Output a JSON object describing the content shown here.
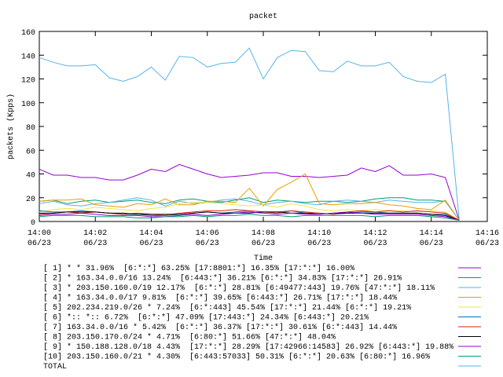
{
  "chart_data": {
    "type": "line",
    "title": "packet",
    "x_label": "Time",
    "y_label": "packets (Kpps)",
    "xlim": [
      0,
      16
    ],
    "ylim": [
      0,
      160
    ],
    "xticks": [
      {
        "value": 0,
        "label": "14:00 06/23"
      },
      {
        "value": 2,
        "label": "14:02 06/23"
      },
      {
        "value": 4,
        "label": "14:04 06/23"
      },
      {
        "value": 6,
        "label": "14:06 06/23"
      },
      {
        "value": 8,
        "label": "14:08 06/23"
      },
      {
        "value": 10,
        "label": "14:10 06/23"
      },
      {
        "value": 12,
        "label": "14:12 06/23"
      },
      {
        "value": 14,
        "label": "14:14 06/23"
      },
      {
        "value": 16,
        "label": "14:16 06/23"
      }
    ],
    "yticks": [
      0,
      20,
      40,
      60,
      80,
      100,
      120,
      140,
      160
    ],
    "grid": false,
    "x": [
      0,
      0.5,
      1,
      1.5,
      2,
      2.5,
      3,
      3.5,
      4,
      4.5,
      5,
      5.5,
      6,
      6.5,
      7,
      7.5,
      8,
      8.5,
      9,
      9.5,
      10,
      10.5,
      11,
      11.5,
      12,
      12.5,
      13,
      13.5,
      14,
      14.5,
      15
    ],
    "series": [
      {
        "name": "[ 1] * * 31.96%  [6:*:*] 63.25% [17:8801:*] 16.35% [17:*:*] 16.00%",
        "color": "#9400d3",
        "values": [
          44,
          39,
          39,
          37,
          37,
          35,
          35,
          39,
          44,
          42,
          48,
          44,
          40,
          37,
          38,
          39,
          41,
          41,
          38,
          38,
          37,
          38,
          39,
          45,
          42,
          47,
          39,
          39,
          40,
          37,
          1
        ]
      },
      {
        "name": "[ 2] * 163.34.0.0/16 13.24%  [6:443:*] 36.21% [6:*:*] 34.83% [17:*:*] 26.91%",
        "color": "#009e73",
        "values": [
          17,
          18,
          15,
          17,
          18,
          16,
          17,
          18,
          16,
          15,
          18,
          19,
          17,
          16,
          18,
          20,
          16,
          18,
          17,
          16,
          17,
          17,
          16,
          17,
          19,
          20,
          20,
          18,
          18,
          17,
          1
        ]
      },
      {
        "name": "[ 3] * 203.150.160.0/19 12.17%  [6:*:*] 28.81% [6:49477:443] 19.76% [47:*:*] 18.11%",
        "color": "#56b4e9",
        "values": [
          15,
          17,
          14,
          13,
          15,
          16,
          18,
          20,
          18,
          13,
          17,
          15,
          16,
          18,
          19,
          17,
          14,
          16,
          17,
          15,
          14,
          17,
          18,
          17,
          16,
          18,
          17,
          16,
          16,
          17,
          1
        ]
      },
      {
        "name": "[ 4] * 163.34.0.0/17 9.81%  [6:*:*] 39.65% [6:443:*] 26.71% [17:*:*] 18.44%",
        "color": "#e69f00",
        "values": [
          17,
          18,
          18,
          19,
          14,
          13,
          12,
          15,
          14,
          19,
          14,
          14,
          17,
          17,
          16,
          28,
          13,
          27,
          33,
          40,
          15,
          14,
          15,
          15,
          16,
          14,
          13,
          11,
          10,
          18,
          1
        ]
      },
      {
        "name": "[ 5] 202.234.219.0/26 * 7.24%  [6:*:443] 45.54% [17:*:*] 21.44% [6:*:*] 19.21%",
        "color": "#f0e442",
        "values": [
          8,
          10,
          11,
          10,
          12,
          11,
          10,
          9,
          11,
          12,
          15,
          16,
          16,
          15,
          14,
          13,
          14,
          12,
          15,
          13,
          10,
          9,
          10,
          9,
          10,
          9,
          9,
          8,
          9,
          8,
          1
        ]
      },
      {
        "name": "[ 6] *:: *:: 6.72%  [6:*:*] 47.09% [17:443:*] 24.34% [6:443:*] 20.21%",
        "color": "#0072b2",
        "values": [
          9,
          8,
          8,
          9,
          8,
          7,
          6,
          6,
          5,
          5,
          6,
          7,
          8,
          7,
          8,
          9,
          8,
          8,
          9,
          7,
          7,
          6,
          7,
          8,
          8,
          7,
          7,
          7,
          6,
          6,
          1
        ]
      },
      {
        "name": "[ 7] 163.34.0.0/16 * 5.42%  [6:*:*] 36.37% [17:*:*] 30.61% [6:*:443] 14.44%",
        "color": "#e51e10",
        "values": [
          6,
          7,
          8,
          7,
          8,
          7,
          6,
          7,
          6,
          5,
          7,
          8,
          9,
          9,
          10,
          9,
          8,
          7,
          9,
          8,
          7,
          6,
          8,
          9,
          8,
          9,
          8,
          9,
          8,
          7,
          1
        ]
      },
      {
        "name": "[ 8] 203.150.170.0/24 * 4.71%  [6:80:*] 51.66% [47:*:*] 48.04%",
        "color": "#000000",
        "values": [
          7,
          7,
          8,
          8,
          8,
          7,
          7,
          6,
          6,
          6,
          6,
          7,
          8,
          7,
          7,
          7,
          8,
          8,
          7,
          7,
          6,
          7,
          7,
          7,
          7,
          7,
          7,
          7,
          6,
          5,
          1
        ]
      },
      {
        "name": "[ 9] * 150.188.128.0/18 4.43%  [17:*:*] 28.29% [17:42966:14583] 26.92% [6:443:*] 19.88%",
        "color": "#9400d3",
        "values": [
          5,
          6,
          6,
          7,
          6,
          5,
          5,
          5,
          4,
          4,
          5,
          6,
          5,
          6,
          7,
          8,
          7,
          6,
          7,
          6,
          6,
          7,
          8,
          7,
          6,
          6,
          6,
          6,
          5,
          4,
          1
        ]
      },
      {
        "name": "[10] 203.150.160.0/21 * 4.30%  [6:443:57033] 50.31% [6:*:*] 20.63% [6:80:*] 16.96%",
        "color": "#009e73",
        "values": [
          4,
          5,
          5,
          5,
          4,
          4,
          4,
          3,
          3,
          4,
          4,
          5,
          4,
          5,
          5,
          6,
          5,
          5,
          4,
          5,
          5,
          5,
          5,
          5,
          4,
          5,
          5,
          5,
          4,
          3,
          1
        ]
      },
      {
        "name": "TOTAL",
        "color": "#56b4e9",
        "values": [
          138,
          134,
          131,
          131,
          132,
          121,
          118,
          122,
          130,
          119,
          139,
          138,
          130,
          133,
          134,
          146,
          120,
          138,
          144,
          143,
          127,
          126,
          135,
          131,
          131,
          134,
          122,
          118,
          117,
          124,
          1
        ]
      }
    ]
  }
}
